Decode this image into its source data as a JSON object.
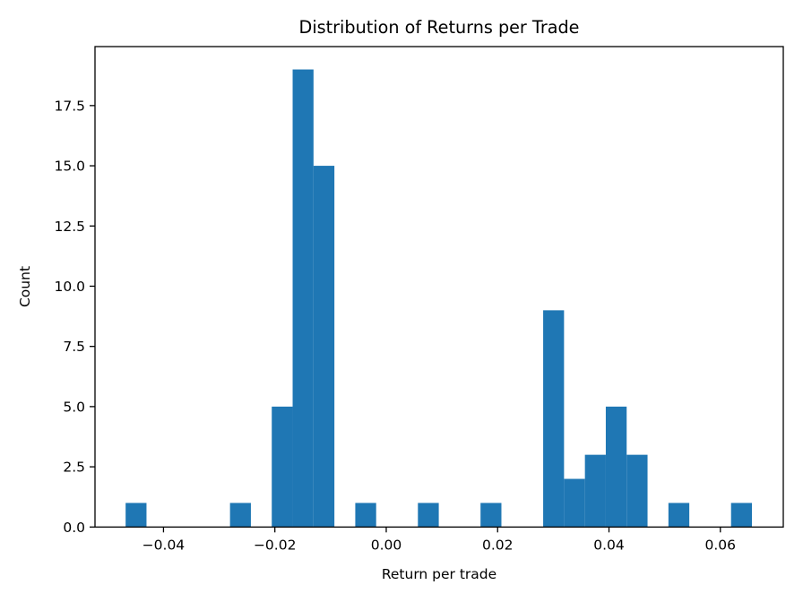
{
  "chart_data": {
    "type": "bar",
    "subtype": "histogram",
    "title": "Distribution of Returns per Trade",
    "xlabel": "Return per trade",
    "ylabel": "Count",
    "bin_start": -0.0468,
    "bin_width": 0.003749,
    "counts": [
      1,
      0,
      0,
      0,
      0,
      1,
      0,
      5,
      19,
      15,
      0,
      1,
      0,
      0,
      1,
      0,
      0,
      1,
      0,
      0,
      9,
      2,
      3,
      5,
      3,
      0,
      1,
      0,
      0,
      1
    ],
    "total_trades": 68,
    "xlim": [
      -0.0523,
      0.0713
    ],
    "ylim": [
      0,
      19.95
    ],
    "xticks": {
      "values": [
        -0.04,
        -0.02,
        0.0,
        0.02,
        0.04,
        0.06
      ],
      "labels": [
        "−0.04",
        "−0.02",
        "0.00",
        "0.02",
        "0.04",
        "0.06"
      ]
    },
    "yticks": {
      "values": [
        0,
        2.5,
        5,
        7.5,
        10,
        12.5,
        15,
        17.5
      ],
      "labels": [
        "0.0",
        "2.5",
        "5.0",
        "7.5",
        "10.0",
        "12.5",
        "15.0",
        "17.5"
      ]
    },
    "bar_color": "#1f77b4",
    "axis_color": "#000000",
    "grid": false,
    "legend": null
  }
}
